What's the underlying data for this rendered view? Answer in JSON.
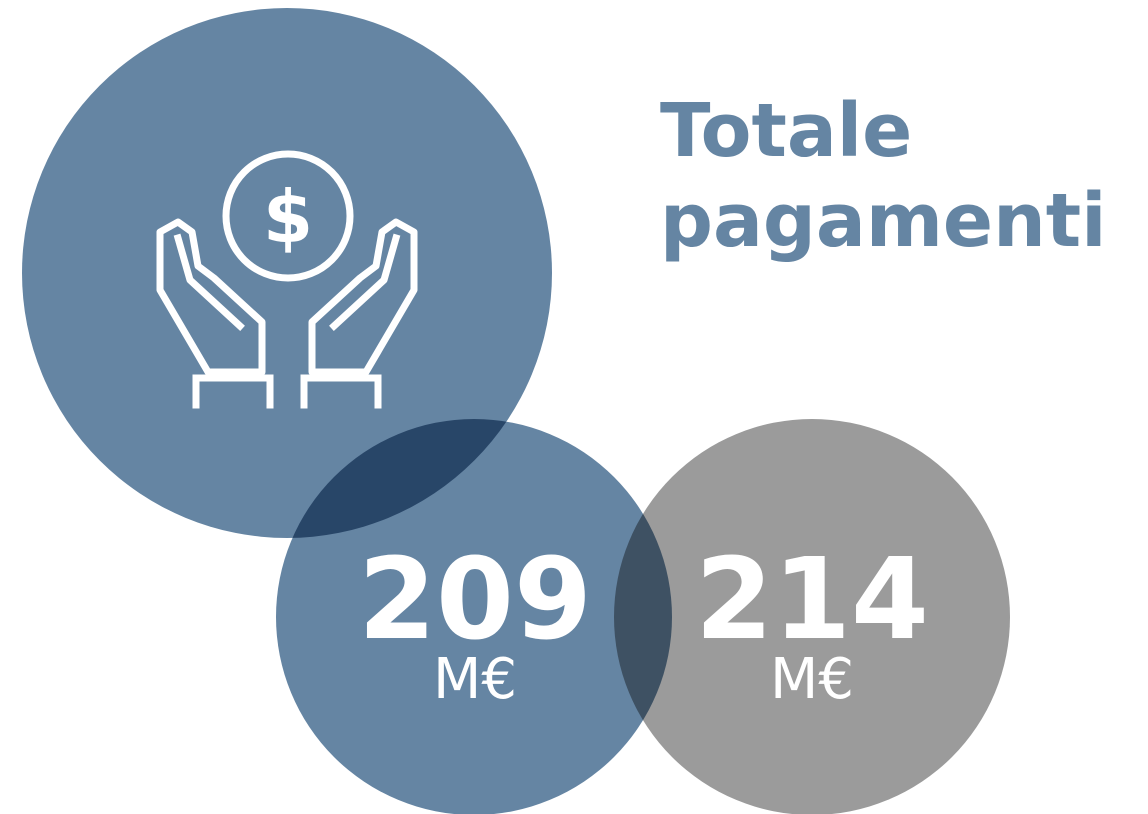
{
  "title": [
    "Totale",
    "pagamenti"
  ],
  "items": [
    {
      "value": "209",
      "unit": "M€"
    },
    {
      "value": "214",
      "unit": "M€"
    }
  ]
}
